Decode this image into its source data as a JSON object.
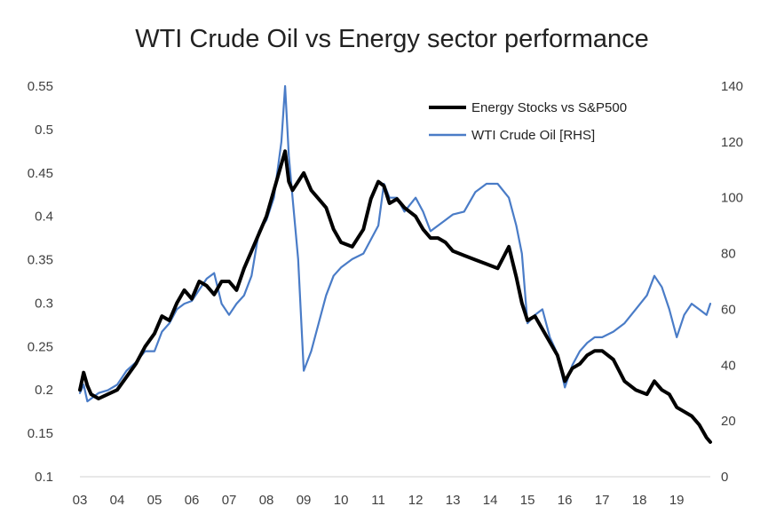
{
  "chart_data": {
    "type": "line",
    "title": "WTI Crude Oil vs Energy sector performance",
    "xlabel": "",
    "ylabel_left": "",
    "ylabel_right": "",
    "x_ticks": [
      "03",
      "04",
      "05",
      "06",
      "07",
      "08",
      "09",
      "10",
      "11",
      "12",
      "13",
      "14",
      "15",
      "16",
      "17",
      "18",
      "19"
    ],
    "xlim": [
      2003.0,
      2019.9
    ],
    "ylim_left": [
      0.1,
      0.55
    ],
    "ylim_right": [
      0,
      140
    ],
    "y_ticks_left": [
      "0.1",
      "0.15",
      "0.2",
      "0.25",
      "0.3",
      "0.35",
      "0.4",
      "0.45",
      "0.5",
      "0.55"
    ],
    "y_ticks_right": [
      "0",
      "20",
      "40",
      "60",
      "80",
      "100",
      "120",
      "140"
    ],
    "grid": false,
    "legend": "top-right",
    "series": [
      {
        "name": "Energy Stocks vs S&P500",
        "axis": "left",
        "color": "#000000",
        "x": [
          2003.0,
          2003.1,
          2003.2,
          2003.3,
          2003.5,
          2003.75,
          2004.0,
          2004.25,
          2004.5,
          2004.75,
          2005.0,
          2005.2,
          2005.4,
          2005.6,
          2005.8,
          2006.0,
          2006.2,
          2006.4,
          2006.6,
          2006.8,
          2007.0,
          2007.2,
          2007.4,
          2007.6,
          2007.8,
          2008.0,
          2008.2,
          2008.4,
          2008.5,
          2008.6,
          2008.7,
          2008.85,
          2009.0,
          2009.2,
          2009.4,
          2009.6,
          2009.8,
          2010.0,
          2010.3,
          2010.6,
          2010.8,
          2011.0,
          2011.15,
          2011.3,
          2011.5,
          2011.7,
          2012.0,
          2012.2,
          2012.4,
          2012.6,
          2012.8,
          2013.0,
          2013.3,
          2013.6,
          2013.9,
          2014.2,
          2014.5,
          2014.7,
          2014.85,
          2015.0,
          2015.2,
          2015.4,
          2015.6,
          2015.8,
          2016.0,
          2016.2,
          2016.4,
          2016.6,
          2016.8,
          2017.0,
          2017.3,
          2017.6,
          2017.9,
          2018.2,
          2018.4,
          2018.6,
          2018.8,
          2019.0,
          2019.2,
          2019.4,
          2019.6,
          2019.8,
          2019.9
        ],
        "values": [
          0.2,
          0.22,
          0.205,
          0.195,
          0.19,
          0.195,
          0.2,
          0.215,
          0.23,
          0.25,
          0.265,
          0.285,
          0.28,
          0.3,
          0.315,
          0.305,
          0.325,
          0.32,
          0.31,
          0.325,
          0.325,
          0.315,
          0.34,
          0.36,
          0.38,
          0.4,
          0.43,
          0.46,
          0.475,
          0.44,
          0.43,
          0.44,
          0.45,
          0.43,
          0.42,
          0.41,
          0.385,
          0.37,
          0.365,
          0.385,
          0.42,
          0.44,
          0.435,
          0.415,
          0.42,
          0.41,
          0.4,
          0.385,
          0.375,
          0.375,
          0.37,
          0.36,
          0.355,
          0.35,
          0.345,
          0.34,
          0.365,
          0.33,
          0.3,
          0.28,
          0.285,
          0.27,
          0.255,
          0.24,
          0.21,
          0.225,
          0.23,
          0.24,
          0.245,
          0.245,
          0.235,
          0.21,
          0.2,
          0.195,
          0.21,
          0.2,
          0.195,
          0.18,
          0.175,
          0.17,
          0.16,
          0.145,
          0.14
        ]
      },
      {
        "name": "WTI Crude Oil [RHS]",
        "axis": "right",
        "color": "#4a7cc7",
        "x": [
          2003.0,
          2003.1,
          2003.2,
          2003.3,
          2003.5,
          2003.75,
          2004.0,
          2004.25,
          2004.5,
          2004.75,
          2005.0,
          2005.2,
          2005.4,
          2005.6,
          2005.8,
          2006.0,
          2006.2,
          2006.4,
          2006.6,
          2006.8,
          2007.0,
          2007.2,
          2007.4,
          2007.6,
          2007.8,
          2008.0,
          2008.2,
          2008.4,
          2008.5,
          2008.6,
          2008.7,
          2008.85,
          2009.0,
          2009.2,
          2009.4,
          2009.6,
          2009.8,
          2010.0,
          2010.3,
          2010.6,
          2010.8,
          2011.0,
          2011.15,
          2011.3,
          2011.5,
          2011.7,
          2012.0,
          2012.2,
          2012.4,
          2012.6,
          2012.8,
          2013.0,
          2013.3,
          2013.6,
          2013.9,
          2014.2,
          2014.5,
          2014.7,
          2014.85,
          2015.0,
          2015.2,
          2015.4,
          2015.6,
          2015.8,
          2016.0,
          2016.2,
          2016.4,
          2016.6,
          2016.8,
          2017.0,
          2017.3,
          2017.6,
          2017.9,
          2018.2,
          2018.4,
          2018.6,
          2018.8,
          2019.0,
          2019.2,
          2019.4,
          2019.6,
          2019.8,
          2019.9
        ],
        "values": [
          30,
          33,
          27,
          28,
          30,
          31,
          33,
          38,
          41,
          45,
          45,
          52,
          55,
          60,
          62,
          63,
          67,
          71,
          73,
          62,
          58,
          62,
          65,
          72,
          88,
          92,
          100,
          120,
          140,
          115,
          100,
          78,
          38,
          45,
          55,
          65,
          72,
          75,
          78,
          80,
          85,
          90,
          105,
          100,
          100,
          95,
          100,
          95,
          88,
          90,
          92,
          94,
          95,
          102,
          105,
          105,
          100,
          90,
          80,
          55,
          58,
          60,
          50,
          44,
          32,
          40,
          45,
          48,
          50,
          50,
          52,
          55,
          60,
          65,
          72,
          68,
          60,
          50,
          58,
          62,
          60,
          58,
          62
        ]
      }
    ]
  }
}
